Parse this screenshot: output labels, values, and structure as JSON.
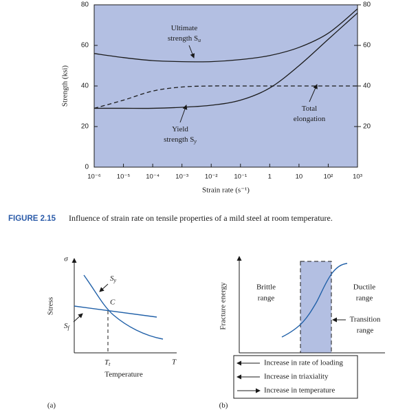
{
  "chart_data": {
    "type": "line",
    "x_label": "Strain rate (s⁻¹)",
    "y_label": "Strength (ksi)",
    "log_x": true,
    "plot_background": "#b3bfe2",
    "xlim": [
      1e-06,
      1000
    ],
    "xticks": [
      {
        "value": 1e-06,
        "label": "10⁻⁶"
      },
      {
        "value": 1e-05,
        "label": "10⁻⁵"
      },
      {
        "value": 0.0001,
        "label": "10⁻⁴"
      },
      {
        "value": 0.001,
        "label": "10⁻³"
      },
      {
        "value": 0.01,
        "label": "10⁻²"
      },
      {
        "value": 0.1,
        "label": "10⁻¹"
      },
      1,
      10,
      {
        "value": 100,
        "label": "10²"
      },
      {
        "value": 1000,
        "label": "10³"
      }
    ],
    "ylim": [
      0,
      80
    ],
    "yticks": [
      0,
      20,
      40,
      60,
      80
    ],
    "y2lim": [
      0,
      80
    ],
    "y2ticks": [
      20,
      40,
      60,
      80
    ],
    "x": [
      1e-06,
      1e-05,
      0.0001,
      0.001,
      0.01,
      0.1,
      1,
      10,
      100,
      1000
    ],
    "series": [
      {
        "name": "Ultimate strength",
        "color": "#1a1a1a",
        "dashed": false,
        "values": [
          56,
          54,
          52.5,
          52,
          52,
          53,
          55,
          59,
          66,
          78
        ]
      },
      {
        "name": "Yield strength",
        "color": "#1a1a1a",
        "dashed": false,
        "values": [
          29,
          29,
          29,
          29.5,
          30.5,
          33,
          39,
          50,
          63,
          76
        ]
      },
      {
        "name": "Total elongation",
        "color": "#1a1a1a",
        "dashed": true,
        "axis": "y2",
        "values": [
          29,
          33,
          37.5,
          39.5,
          40,
          40,
          40,
          40,
          40,
          40
        ]
      }
    ],
    "annotations": [
      {
        "lines": [
          "Ultimate",
          "strength S"
        ],
        "sub": "u"
      },
      {
        "lines": [
          "Yield",
          "strength S"
        ],
        "sub": "y"
      },
      {
        "lines": [
          "Total",
          "elongation"
        ]
      }
    ]
  },
  "caption": {
    "label": "FIGURE 2.15",
    "text": "Influence of strain rate on tensile properties of a mild steel at room temperature."
  },
  "diagram_a": {
    "sigma": "σ",
    "y_label": "Stress",
    "sy": {
      "main": "S",
      "sub": "y"
    },
    "c": "C",
    "sf": {
      "main": "S",
      "sub": "f"
    },
    "tt": {
      "main": "T",
      "sub": "t"
    },
    "t": "T",
    "x_label": "Temperature",
    "panel": "(a)"
  },
  "diagram_b": {
    "y_label": "Fracture energy",
    "brittle": [
      "Brittle",
      "range"
    ],
    "ductile": [
      "Ductile",
      "range"
    ],
    "transition": [
      "Transition",
      "range"
    ],
    "legend": [
      "Increase in rate of loading",
      "Increase in triaxiality",
      "Increase in temperature"
    ],
    "panel": "(b)"
  }
}
